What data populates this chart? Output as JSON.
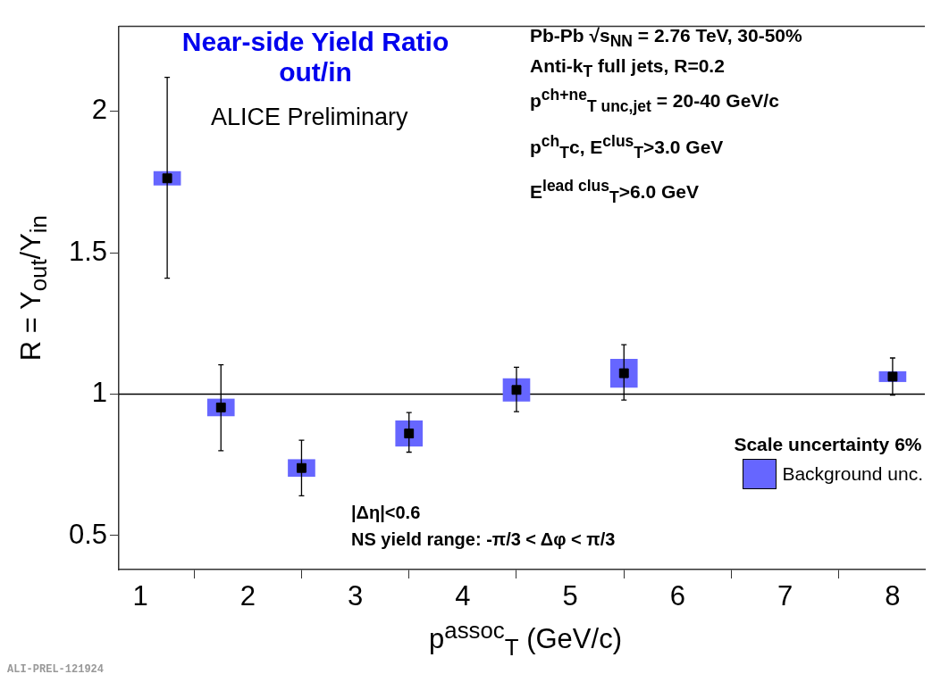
{
  "chart_data": {
    "type": "scatter",
    "title": "Near-side Yield Ratio\nout/in",
    "xlabel": "p$^{assoc}$$_{T}$ (GeV/c)",
    "ylabel": "R = Y$_{out}$/Y$_{in}$",
    "legend_title": "Scale uncertainty 6%",
    "annotations": [
      "ALICE Preliminary",
      "Pb-Pb  √s$_{NN}$ = 2.76 TeV, 30-50%",
      "Anti-k$_{T}$ full jets, R=0.2",
      "p$^{ch+ne}$$_{T unc,jet}$ = 20-40 GeV/c",
      "p$^{ch}$$_{T}$c, E$^{clus}$$_{T}$>3.0 GeV",
      "E$^{lead clus}$$_{T}$>6.0 GeV",
      "|Δη|<0.6",
      "NS yield range: -π/3 <  Δφ <  π/3",
      "ALI-PREL-121924"
    ],
    "xlim": [
      0.8,
      8.3
    ],
    "xticks": [
      1,
      2,
      3,
      4,
      5,
      6,
      7,
      8
    ],
    "ylim": [
      0.38,
      2.3
    ],
    "yticks": [
      0.5,
      1,
      1.5,
      2
    ],
    "grid": false,
    "legend": "bottom right",
    "marker": "square",
    "ref_lines": [
      {
        "axis": "y",
        "value": 1,
        "color": "#000000"
      }
    ],
    "series": [
      {
        "name": "Background unc.",
        "type": "bar",
        "color": "#6666ff",
        "x": [
          1.25,
          1.75,
          2.5,
          3.5,
          4.5,
          5.5,
          8
        ],
        "base": [
          1.739,
          0.923,
          0.709,
          0.816,
          0.975,
          1.024,
          1.044
        ],
        "values": [
          0.048,
          0.06,
          0.06,
          0.09,
          0.08,
          0.1,
          0.036
        ]
      },
      {
        "color": "#000000",
        "x": [
          1.25,
          1.75,
          2.5,
          3.5,
          4.5,
          5.5,
          8
        ],
        "values": [
          1.763,
          0.953,
          0.739,
          0.861,
          1.015,
          1.074,
          1.062
        ],
        "errors": [
          [
            1.41,
            2.12
          ],
          [
            0.8,
            1.104
          ],
          [
            0.641,
            0.837
          ],
          [
            0.795,
            0.935
          ],
          [
            0.938,
            1.095
          ],
          [
            0.979,
            1.175
          ],
          [
            0.997,
            1.128
          ]
        ]
      }
    ]
  }
}
